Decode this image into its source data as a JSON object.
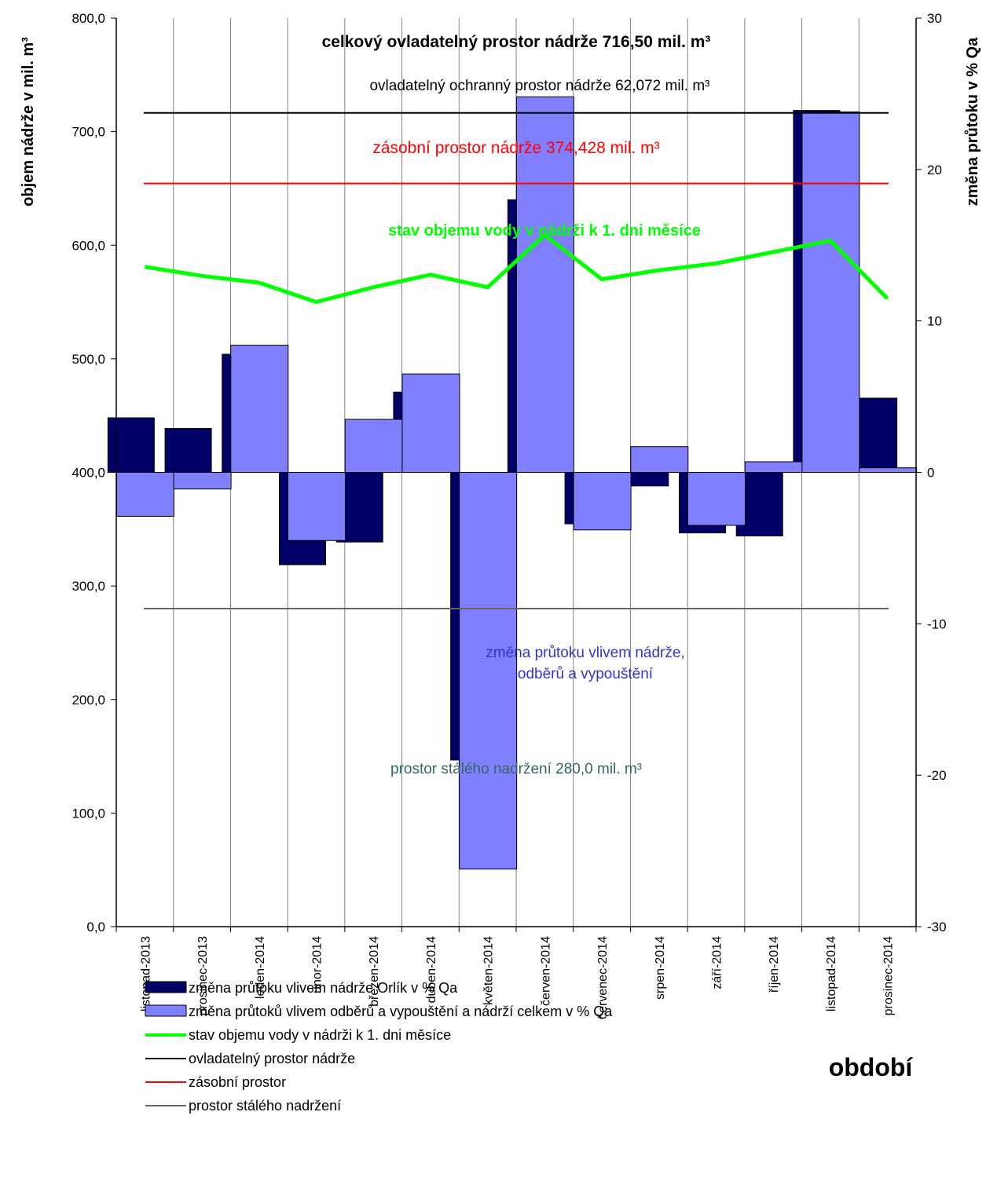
{
  "chart_data": {
    "type": "bar",
    "categories": [
      "listopad-2013",
      "prosinec-2013",
      "leden-2014",
      "únor-2014",
      "březen-2014",
      "duben-2014",
      "květen-2014",
      "červen-2014",
      "červenec-2014",
      "srpen-2014",
      "září-2014",
      "říjen-2014",
      "listopad-2014",
      "prosinec-2014"
    ],
    "xlabel": "období",
    "ylabel_left": "objem nádrže v mil. m³",
    "ylabel_right": "změna průtoku v % Qa",
    "ylim_left": [
      0,
      800
    ],
    "ylim_right": [
      -30,
      30
    ],
    "left_ticks": [
      "0,0",
      "100,0",
      "200,0",
      "300,0",
      "400,0",
      "500,0",
      "600,0",
      "700,0",
      "800,0"
    ],
    "right_ticks": [
      "-30",
      "-20",
      "-10",
      "0",
      "10",
      "20",
      "30"
    ],
    "series": [
      {
        "name": "změna průtoku vlivem nádrže Orlík v % Qa",
        "axis": "right",
        "color": "#000066",
        "values": [
          3.6,
          2.9,
          7.8,
          -6.1,
          -4.6,
          5.3,
          -19.0,
          18.0,
          -3.4,
          -0.9,
          -4.0,
          -4.2,
          23.9,
          4.9
        ]
      },
      {
        "name": "změna průtoků vlivem odběrů a vypouštění a nádrží celkem v % Qa",
        "axis": "right",
        "color": "#8080FF",
        "values": [
          -2.9,
          -1.1,
          8.4,
          -4.5,
          3.5,
          6.5,
          -26.2,
          24.8,
          -3.8,
          1.7,
          -3.5,
          0.7,
          23.8,
          0.3
        ]
      },
      {
        "name": "stav objemu vody v nádrži k 1. dni měsíce",
        "axis": "left",
        "type": "line",
        "color": "#00FF00",
        "values": [
          581,
          573,
          567,
          550,
          563,
          574,
          563,
          609,
          570,
          578,
          584,
          594,
          604,
          553
        ]
      },
      {
        "name": "ovladatelný prostor nádrže",
        "axis": "left",
        "type": "hline",
        "color": "#000000",
        "value": 716.5
      },
      {
        "name": "zásobní prostor",
        "axis": "left",
        "type": "hline",
        "color": "#FF0000",
        "value": 654.4
      },
      {
        "name": "prostor stálého nadržení",
        "axis": "left",
        "type": "hline",
        "color": "#666666",
        "value": 280.0
      }
    ],
    "annotations": {
      "title": "celkový ovladatelný prostor nádrže 716,50  mil. m³",
      "ochranny": "ovladatelný ochranný prostor nádrže 62,072 mil. m³",
      "zasobni": "zásobní prostor nádrže 374,428 mil. m³",
      "stav": "stav objemu vody v  nádrži k 1. dni měsíce",
      "zmena_line1": "změna průtoku vlivem nádrže,",
      "zmena_line2": "odběrů a vypouštění",
      "stale": "prostor stálého nadržení 280,0 mil. m³"
    },
    "colors": {
      "ann_title": "#000000",
      "ann_zasobni": "#FF0000",
      "ann_stav": "#00FF00",
      "ann_zmena": "#3333CC",
      "ann_stale": "#336666"
    }
  }
}
